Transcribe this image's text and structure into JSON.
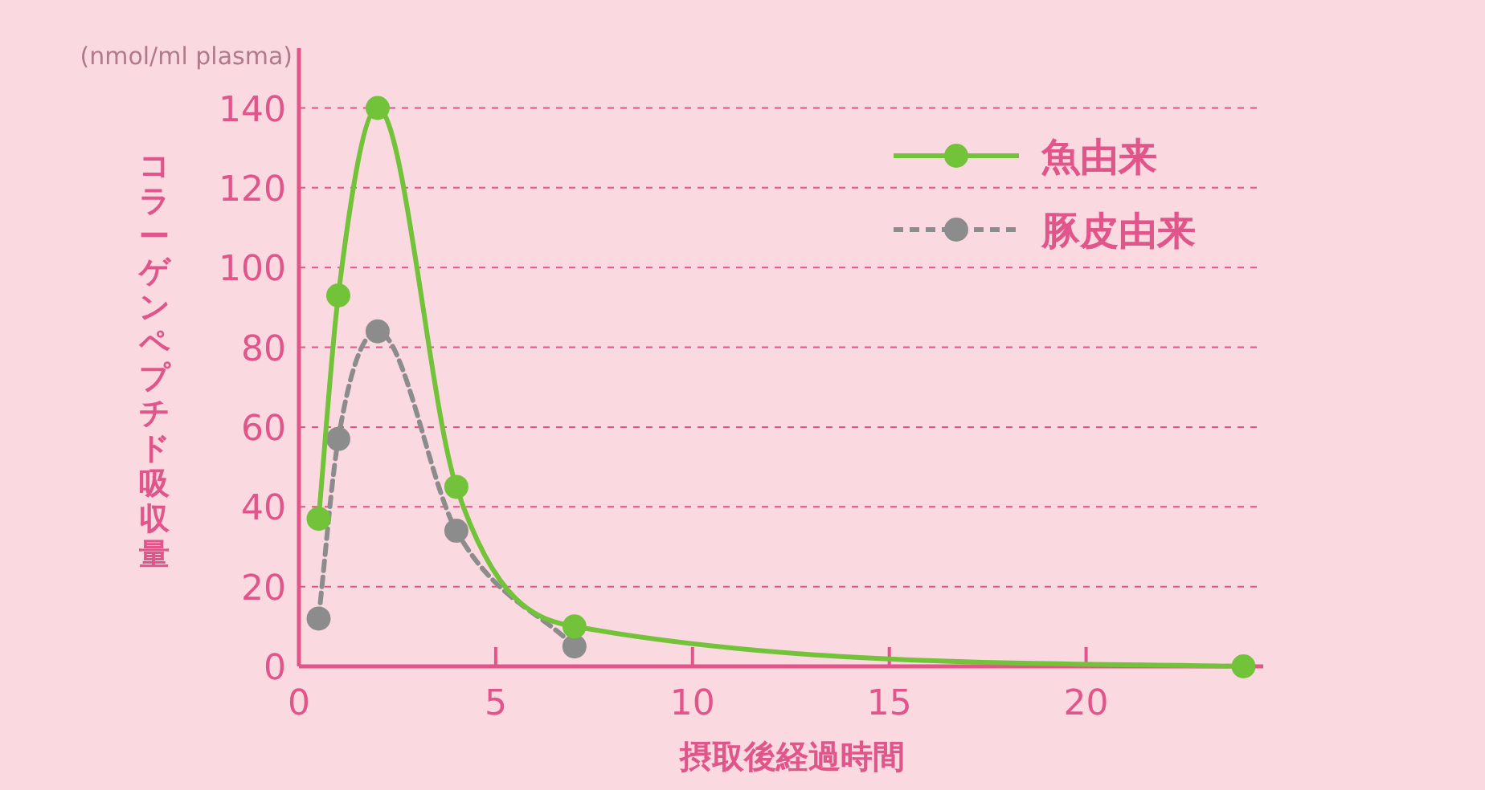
{
  "chart_data": {
    "type": "line",
    "xlabel": "摂取後経過時間",
    "ylabel": "コラーゲンペプチド吸収量",
    "annotations": [
      "(nmol/ml plasma)"
    ],
    "x": [
      0.5,
      1,
      2,
      4,
      7,
      24
    ],
    "series": [
      {
        "name": "魚由来",
        "color": "#72c23a",
        "values": [
          37,
          93,
          140,
          45,
          10,
          0
        ],
        "line_style": "solid"
      },
      {
        "name": "豚皮由来",
        "color": "#8c8c8c",
        "values": [
          12,
          57,
          84,
          34,
          5,
          null
        ],
        "line_style": "dashed"
      }
    ],
    "xlim": [
      0,
      24.5
    ],
    "ylim": [
      0,
      155
    ],
    "xticks": [
      0,
      5,
      10,
      15,
      20
    ],
    "yticks": [
      0,
      20,
      40,
      60,
      80,
      100,
      120,
      140
    ],
    "grid": "y",
    "legend": "top right",
    "marker": "circle"
  }
}
